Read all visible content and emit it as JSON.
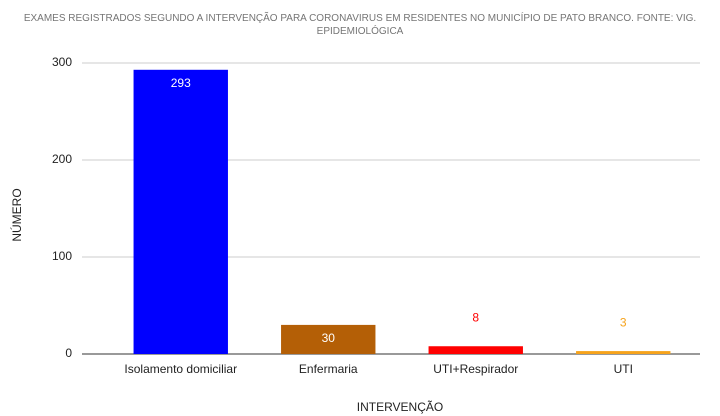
{
  "chart_data": {
    "type": "bar",
    "title": "EXAMES REGISTRADOS SEGUNDO A INTERVENÇÃO PARA CORONAVIRUS EM RESIDENTES NO MUNICÍPIO DE PATO BRANCO. FONTE: VIG. EPIDEMIOLÓGICA",
    "x_label": "INTERVENÇÃO",
    "y_label": "NÚMERO",
    "categories": [
      "Isolamento domiciliar",
      "Enfermaria",
      "UTI+Respirador",
      "UTI"
    ],
    "values": [
      293,
      30,
      8,
      3
    ],
    "colors": [
      "#0000ff",
      "#b45f06",
      "#ff0000",
      "#f6a31c"
    ],
    "ylim": [
      0,
      300
    ],
    "yticks": [
      0,
      100,
      200,
      300
    ],
    "grid": true
  }
}
